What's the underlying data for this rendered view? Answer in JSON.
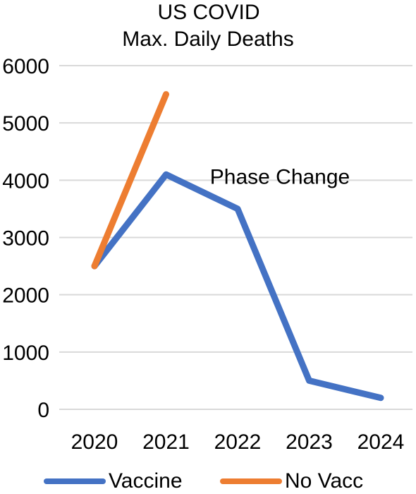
{
  "chart_data": {
    "type": "line",
    "title": "US COVID",
    "subtitle": "Max. Daily Deaths",
    "xlabel": "",
    "ylabel": "",
    "categories": [
      "2020",
      "2021",
      "2022",
      "2023",
      "2024"
    ],
    "ylim": [
      0,
      6000
    ],
    "yticks": [
      "0",
      "1000",
      "2000",
      "3000",
      "4000",
      "5000",
      "6000"
    ],
    "grid": true,
    "legend_position": "bottom",
    "series": [
      {
        "name": "Vaccine",
        "color": "#4472C4",
        "values": [
          2500,
          4100,
          3500,
          500,
          200
        ]
      },
      {
        "name": "No Vacc",
        "color": "#ED7D31",
        "values": [
          2500,
          5500,
          null,
          null,
          null
        ]
      }
    ],
    "annotation": {
      "text": "Phase Change",
      "x": "2022",
      "y": 4050
    }
  }
}
